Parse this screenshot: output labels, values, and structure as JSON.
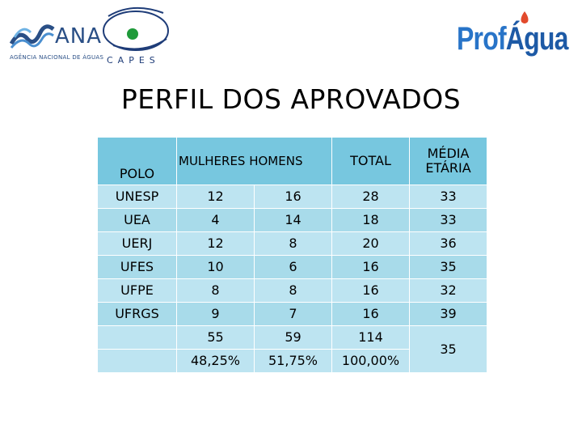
{
  "logos": {
    "ana": {
      "name": "ANA",
      "subtitle": "AGÊNCIA NACIONAL DE ÁGUAS"
    },
    "capes": {
      "name": "CAPES"
    },
    "profagua": {
      "name_prefix": "Prof",
      "name_suffix": "Água"
    }
  },
  "title": "PERFIL DOS APROVADOS",
  "table": {
    "headers": {
      "polo": "POLO",
      "mulheres_homens": "MULHERES HOMENS",
      "total": "TOTAL",
      "media_etaria_line1": "MÉDIA",
      "media_etaria_line2": "ETÁRIA"
    },
    "rows": [
      {
        "polo": "UNESP",
        "mulheres": "12",
        "homens": "16",
        "total": "28",
        "media": "33"
      },
      {
        "polo": "UEA",
        "mulheres": "4",
        "homens": "14",
        "total": "18",
        "media": "33"
      },
      {
        "polo": "UERJ",
        "mulheres": "12",
        "homens": "8",
        "total": "20",
        "media": "36"
      },
      {
        "polo": "UFES",
        "mulheres": "10",
        "homens": "6",
        "total": "16",
        "media": "35"
      },
      {
        "polo": "UFPE",
        "mulheres": "8",
        "homens": "8",
        "total": "16",
        "media": "32"
      },
      {
        "polo": "UFRGS",
        "mulheres": "9",
        "homens": "7",
        "total": "16",
        "media": "39"
      }
    ],
    "totals": {
      "mulheres": "55",
      "homens": "59",
      "total": "114",
      "media": "35"
    },
    "percentages": {
      "mulheres": "48,25%",
      "homens": "51,75%",
      "total": "100,00%"
    }
  },
  "colors": {
    "header_bg": "#77c7df",
    "row_light": "#bde4f1",
    "row_dark": "#a8dbea",
    "title": "#000000"
  }
}
